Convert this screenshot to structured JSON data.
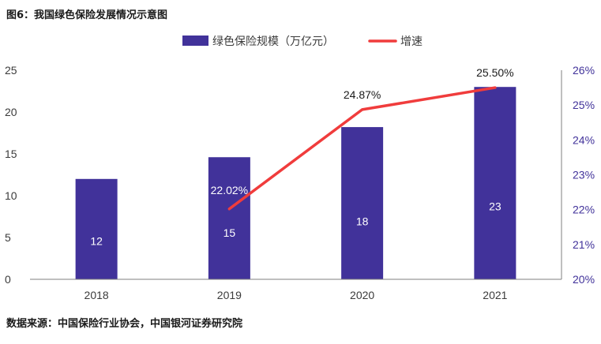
{
  "figure": {
    "title": "图6：我国绿色保险发展情况示意图",
    "source": "数据来源：中国保险行业协会，中国银河证券研究院"
  },
  "chart_data": {
    "type": "bar",
    "categories": [
      "2018",
      "2019",
      "2020",
      "2021"
    ],
    "series": [
      {
        "name": "绿色保险规模（万亿元）",
        "type": "bar",
        "axis": "left",
        "values": [
          12,
          14.6,
          18.2,
          23
        ],
        "data_labels": [
          "12",
          "15",
          "18",
          "23"
        ],
        "color": "#41329A"
      },
      {
        "name": "增速",
        "type": "line",
        "axis": "right",
        "values": [
          null,
          22.02,
          24.87,
          25.5
        ],
        "data_labels": [
          null,
          "22.02%",
          "24.87%",
          "25.50%"
        ],
        "color": "#F03C3C"
      }
    ],
    "y_left": {
      "lim": [
        0,
        25
      ],
      "ticks": [
        "0",
        "5",
        "10",
        "15",
        "20",
        "25"
      ]
    },
    "y_right": {
      "lim": [
        20,
        26
      ],
      "ticks": [
        "20%",
        "21%",
        "22%",
        "23%",
        "24%",
        "25%",
        "26%"
      ]
    },
    "grid": false,
    "legend_position": "top-center"
  }
}
